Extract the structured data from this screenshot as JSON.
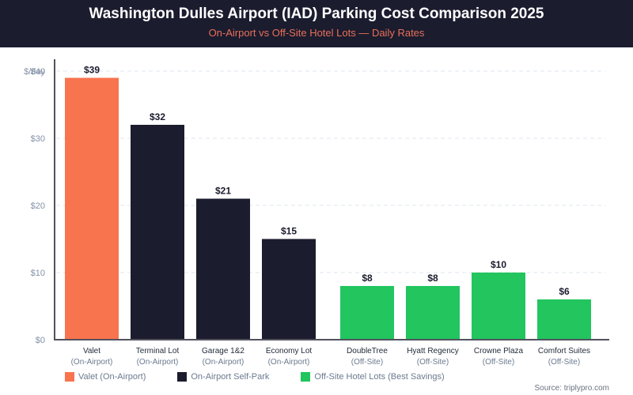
{
  "header": {
    "title": "Washington Dulles Airport (IAD) Parking Cost Comparison 2025",
    "subtitle": "On-Airport vs Off-Site Hotel Lots — Daily Rates"
  },
  "source": "Source: triplypro.com",
  "colors": {
    "valet": "#f7744f",
    "self_park": "#1b1c2e",
    "off_site": "#22c55e",
    "header_bg": "#1b1c2e",
    "subtitle": "#e8705a"
  },
  "chart_data": {
    "type": "bar",
    "title": "Washington Dulles Airport (IAD) Parking Cost Comparison 2025",
    "subtitle": "On-Airport vs Off-Site Hotel Lots — Daily Rates",
    "xlabel": "",
    "ylabel": "$/day",
    "ylim": [
      0,
      40
    ],
    "yticks": [
      0,
      10,
      20,
      30,
      40
    ],
    "ytick_labels": [
      "$0",
      "$10",
      "$20",
      "$30",
      "$40"
    ],
    "grid": true,
    "legend_position": "bottom-left",
    "categories": [
      {
        "name": "Valet",
        "sub": "(On-Airport)",
        "group": "valet"
      },
      {
        "name": "Terminal Lot",
        "sub": "(On-Airport)",
        "group": "self_park"
      },
      {
        "name": "Garage 1&2",
        "sub": "(On-Airport)",
        "group": "self_park"
      },
      {
        "name": "Economy Lot",
        "sub": "(On-Airport)",
        "group": "self_park"
      },
      {
        "name": "DoubleTree",
        "sub": "(Off-Site)",
        "group": "off_site"
      },
      {
        "name": "Hyatt Regency",
        "sub": "(Off-Site)",
        "group": "off_site"
      },
      {
        "name": "Crowne Plaza",
        "sub": "(Off-Site)",
        "group": "off_site"
      },
      {
        "name": "Comfort Suites",
        "sub": "(Off-Site)",
        "group": "off_site"
      }
    ],
    "values": [
      39,
      32,
      21,
      15,
      8,
      8,
      10,
      6
    ],
    "value_labels": [
      "$39",
      "$32",
      "$21",
      "$15",
      "$8",
      "$8",
      "$10",
      "$6"
    ],
    "legend": [
      {
        "label": "Valet (On-Airport)",
        "group": "valet"
      },
      {
        "label": "On-Airport Self-Park",
        "group": "self_park"
      },
      {
        "label": "Off-Site Hotel Lots (Best Savings)",
        "group": "off_site"
      }
    ]
  }
}
